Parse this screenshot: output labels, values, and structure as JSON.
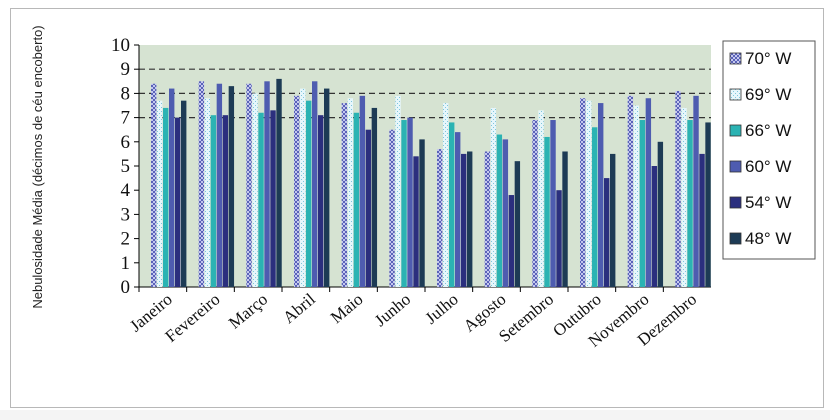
{
  "chart_data": {
    "type": "bar",
    "ylabel": "Nebulosidade Média (décimos de céu encoberto)",
    "ylim": [
      0,
      10
    ],
    "yticks": [
      "0",
      "1",
      "2",
      "3",
      "4",
      "5",
      "6",
      "7",
      "8",
      "9",
      "10"
    ],
    "grid": "dashed lines at 7, 8, 9",
    "legend_position": "right",
    "categories": [
      "Janeiro",
      "Fevereiro",
      "Março",
      "Abril",
      "Maio",
      "Junho",
      "Julho",
      "Agosto",
      "Setembro",
      "Outubro",
      "Novembro",
      "Dezembro"
    ],
    "series": [
      {
        "name": "70° W",
        "color": "#9aa0d8",
        "values": [
          8.4,
          8.5,
          8.4,
          7.9,
          7.6,
          6.5,
          5.7,
          5.6,
          6.9,
          7.8,
          7.9,
          8.1
        ]
      },
      {
        "name": "69° W",
        "color": "#c8eaf5",
        "values": [
          7.7,
          7.8,
          8.0,
          8.2,
          7.8,
          7.9,
          7.6,
          7.4,
          7.3,
          7.7,
          7.5,
          7.4
        ]
      },
      {
        "name": "66° W",
        "color": "#2bb3b3",
        "values": [
          7.4,
          7.1,
          7.2,
          7.7,
          7.2,
          6.9,
          6.8,
          6.3,
          6.2,
          6.6,
          6.9,
          6.9
        ]
      },
      {
        "name": "60° W",
        "color": "#4e5cb0",
        "values": [
          8.2,
          8.4,
          8.5,
          8.5,
          7.9,
          7.0,
          6.4,
          6.1,
          6.9,
          7.6,
          7.8,
          7.9
        ]
      },
      {
        "name": "54° W",
        "color": "#2b2f7e",
        "values": [
          7.0,
          7.1,
          7.3,
          7.1,
          6.5,
          5.4,
          5.5,
          3.8,
          4.0,
          4.5,
          5.0,
          5.5
        ]
      },
      {
        "name": "48° W",
        "color": "#1d3b55",
        "values": [
          7.7,
          8.3,
          8.6,
          8.2,
          7.4,
          6.1,
          5.6,
          5.2,
          5.6,
          5.5,
          6.0,
          6.8
        ]
      }
    ]
  }
}
